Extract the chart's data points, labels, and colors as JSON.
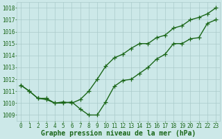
{
  "line1_x": [
    0,
    1,
    2,
    3,
    4,
    5,
    6,
    7,
    8,
    9,
    10,
    11,
    12,
    13,
    14,
    15,
    16,
    17,
    18,
    19,
    20,
    21,
    22,
    23
  ],
  "line1_y": [
    1011.5,
    1011.0,
    1010.4,
    1010.4,
    1010.0,
    1010.0,
    1010.1,
    1009.5,
    1009.0,
    1009.0,
    1010.1,
    1011.4,
    1011.9,
    1012.0,
    1012.5,
    1013.0,
    1013.7,
    1014.1,
    1015.0,
    1015.0,
    1015.4,
    1015.5,
    1016.7,
    1017.0
  ],
  "line2_x": [
    0,
    1,
    2,
    3,
    4,
    5,
    6,
    7,
    8,
    9,
    10,
    11,
    12,
    13,
    14,
    15,
    16,
    17,
    18,
    19,
    20,
    21,
    22,
    23
  ],
  "line2_y": [
    1011.5,
    1011.0,
    1010.4,
    1010.3,
    1010.0,
    1010.1,
    1010.0,
    1010.3,
    1011.0,
    1012.0,
    1013.1,
    1013.8,
    1014.1,
    1014.6,
    1015.0,
    1015.0,
    1015.5,
    1015.7,
    1016.3,
    1016.5,
    1017.0,
    1017.2,
    1017.5,
    1018.0
  ],
  "line_color": "#1a6618",
  "bg_color": "#cce8e8",
  "grid_color": "#aacaca",
  "xlabel": "Graphe pression niveau de la mer (hPa)",
  "xlabel_color": "#1a6618",
  "xtick_labels": [
    "0",
    "1",
    "2",
    "3",
    "4",
    "5",
    "6",
    "7",
    "8",
    "9",
    "10",
    "11",
    "12",
    "13",
    "14",
    "15",
    "16",
    "17",
    "18",
    "19",
    "20",
    "21",
    "22",
    "23"
  ],
  "ytick_labels": [
    "1009",
    "1010",
    "1011",
    "1012",
    "1013",
    "1014",
    "1015",
    "1016",
    "1017",
    "1018"
  ],
  "ylim": [
    1008.5,
    1018.5
  ],
  "xlim": [
    -0.5,
    23.5
  ],
  "marker": "+",
  "markersize": 4,
  "linewidth": 1.0,
  "tick_fontsize": 5.5,
  "xlabel_fontsize": 7.0
}
